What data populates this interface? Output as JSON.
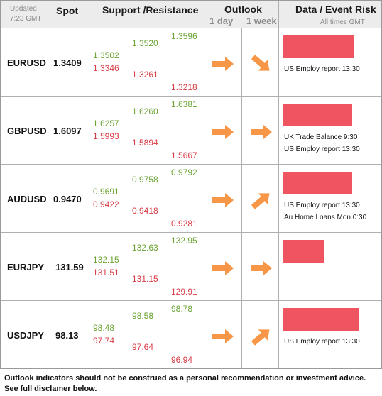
{
  "header": {
    "updated_label": "Updated",
    "updated_time": "7:23 GMT",
    "spot_label": "Spot",
    "sr_label": "Support /Resistance",
    "outlook_label": "Outlook",
    "day_label": "1 day",
    "week_label": "1 week",
    "event_label": "Data / Event Risk",
    "times_label": "All times GMT"
  },
  "colors": {
    "support_resistance_green": "#6aa332",
    "support_resistance_red": "#d83c45",
    "risk_bar": "#ef5461",
    "arrow": "#f79646"
  },
  "rows": [
    {
      "pair": "EURUSD",
      "spot": "1.3409",
      "c1": [
        "1.3502",
        "1.3346"
      ],
      "c2": [
        "1.3520",
        "1.3261"
      ],
      "c3": [
        "1.3596",
        "1.3218"
      ],
      "day_arrow": "arrow-right-icon",
      "week_arrow": "arrow-down-right-icon",
      "risk_level": 0.83,
      "events": [
        "US Employ report 13:30"
      ]
    },
    {
      "pair": "GBPUSD",
      "spot": "1.6097",
      "c1": [
        "1.6257",
        "1.5993"
      ],
      "c2": [
        "1.6260",
        "1.5894"
      ],
      "c3": [
        "1.6381",
        "1.5667"
      ],
      "day_arrow": "arrow-right-icon",
      "week_arrow": "arrow-right-icon",
      "risk_level": 0.81,
      "events": [
        "UK Trade Balance 9:30",
        "US Employ report 13:30"
      ]
    },
    {
      "pair": "AUDUSD",
      "spot": "0.9470",
      "c1": [
        "0.9691",
        "0.9422"
      ],
      "c2": [
        "0.9758",
        "0.9418"
      ],
      "c3": [
        "0.9792",
        "0.9281"
      ],
      "day_arrow": "arrow-right-icon",
      "week_arrow": "arrow-up-right-icon",
      "risk_level": 0.81,
      "events": [
        "US Employ report 13:30",
        "Au Home Loans Mon 0:30"
      ]
    },
    {
      "pair": "EURJPY",
      "spot": "131.59",
      "c1": [
        "132.15",
        "131.51"
      ],
      "c2": [
        "132.63",
        "131.15"
      ],
      "c3": [
        "132.95",
        "129.91"
      ],
      "day_arrow": "arrow-right-icon",
      "week_arrow": "arrow-right-icon",
      "risk_level": 0.48,
      "events": []
    },
    {
      "pair": "USDJPY",
      "spot": "98.13",
      "c1": [
        "98.48",
        "97.74"
      ],
      "c2": [
        "98.58",
        "97.64"
      ],
      "c3": [
        "98.78",
        "96.94"
      ],
      "day_arrow": "arrow-right-icon",
      "week_arrow": "arrow-up-right-icon",
      "risk_level": 0.89,
      "events": [
        "US Employ report 13:30"
      ]
    }
  ],
  "disclaimer": "Outlook indicators should not be construed as a personal recommendation or investment advice. See full disclamer below."
}
